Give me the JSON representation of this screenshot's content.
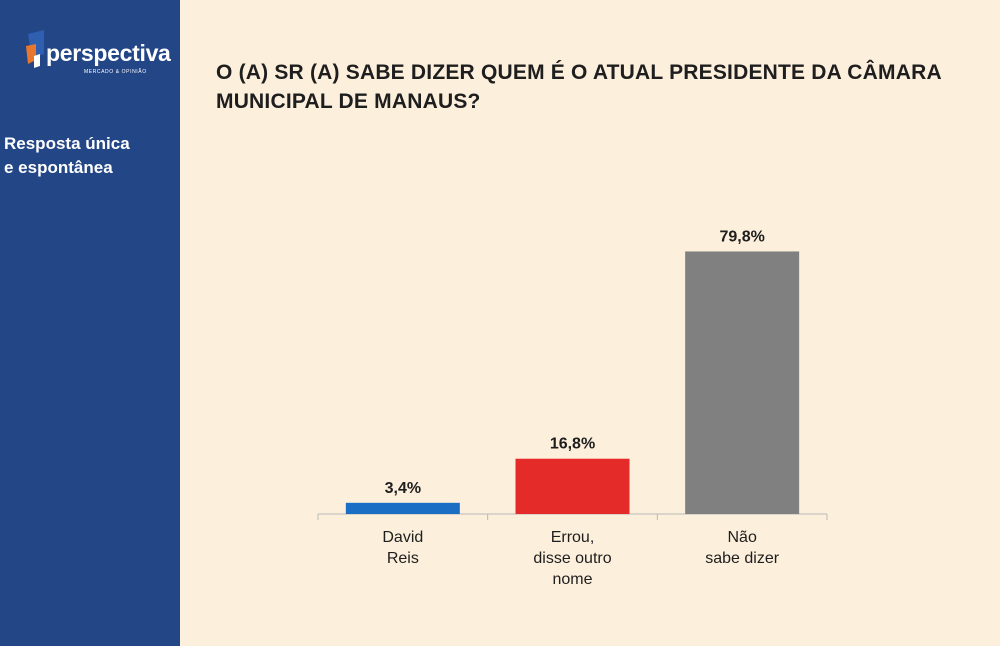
{
  "sidebar": {
    "logo_text": "perspectiva",
    "logo_tagline": "MERCADO & OPINIÃO",
    "note_line1": "Resposta única",
    "note_line2": "e espontânea"
  },
  "colors": {
    "sidebar_bg": "#234687",
    "page_bg": "#fcefdc",
    "logo_orange": "#e8772e"
  },
  "chart_data": {
    "type": "bar",
    "title": "O (A) SR (A) SABE DIZER QUEM É O ATUAL PRESIDENTE DA CÂMARA MUNICIPAL DE MANAUS?",
    "categories": [
      [
        "David",
        "Reis"
      ],
      [
        "Errou,",
        "disse outro",
        "nome"
      ],
      [
        "Não",
        "sabe dizer"
      ]
    ],
    "values": [
      3.4,
      16.8,
      79.8
    ],
    "value_labels": [
      "3,4%",
      "16,8%",
      "79,8%"
    ],
    "colors": [
      "#1a6fc4",
      "#e52a2a",
      "#808080"
    ],
    "ylim": [
      0,
      100
    ],
    "xlabel": "",
    "ylabel": "",
    "grid": false,
    "legend": "none"
  }
}
